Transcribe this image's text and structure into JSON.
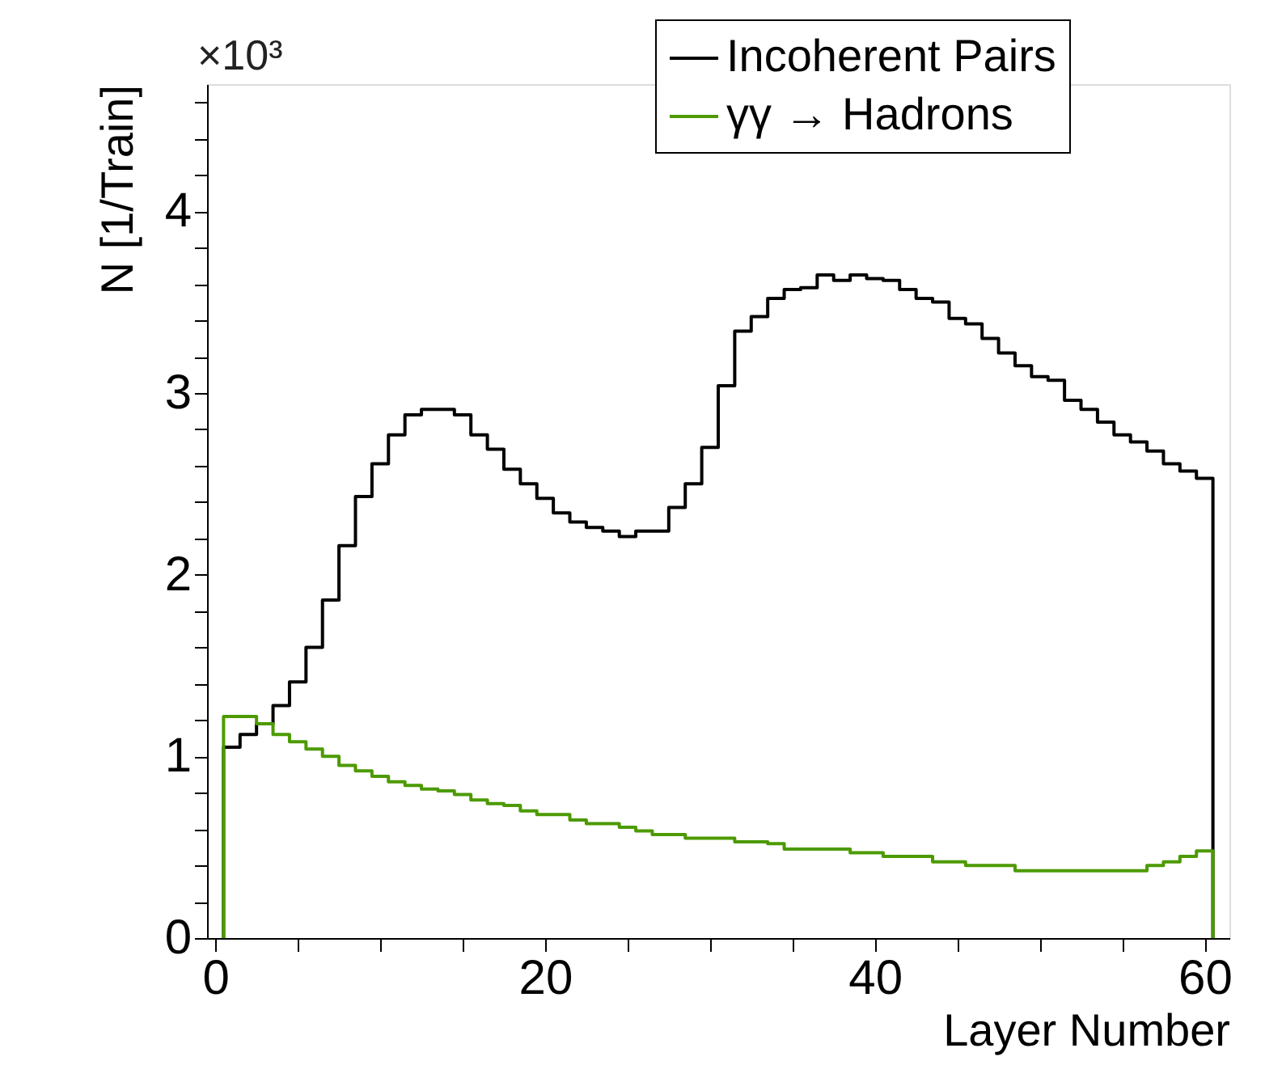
{
  "chart_data": {
    "type": "histogram",
    "xlabel": "Layer Number",
    "ylabel": "N [1/Train]",
    "annotations": [
      "×10³"
    ],
    "bins": [
      0.5,
      1.5,
      2.5,
      3.5,
      4.5,
      5.5,
      6.5,
      7.5,
      8.5,
      9.5,
      10.5,
      11.5,
      12.5,
      13.5,
      14.5,
      15.5,
      16.5,
      17.5,
      18.5,
      19.5,
      20.5,
      21.5,
      22.5,
      23.5,
      24.5,
      25.5,
      26.5,
      27.5,
      28.5,
      29.5,
      30.5,
      31.5,
      32.5,
      33.5,
      34.5,
      35.5,
      36.5,
      37.5,
      38.5,
      39.5,
      40.5,
      41.5,
      42.5,
      43.5,
      44.5,
      45.5,
      46.5,
      47.5,
      48.5,
      49.5,
      50.5,
      51.5,
      52.5,
      53.5,
      54.5,
      55.5,
      56.5,
      57.5,
      58.5,
      59.5,
      60.5
    ],
    "series": [
      {
        "name": "Incoherent Pairs",
        "color": "#000000",
        "values": [
          1.05,
          1.12,
          1.18,
          1.28,
          1.41,
          1.6,
          1.86,
          2.16,
          2.43,
          2.61,
          2.77,
          2.88,
          2.91,
          2.91,
          2.88,
          2.77,
          2.69,
          2.58,
          2.5,
          2.42,
          2.34,
          2.29,
          2.26,
          2.24,
          2.21,
          2.24,
          2.24,
          2.37,
          2.5,
          2.7,
          3.04,
          3.34,
          3.42,
          3.52,
          3.57,
          3.58,
          3.65,
          3.62,
          3.65,
          3.63,
          3.62,
          3.57,
          3.52,
          3.5,
          3.41,
          3.38,
          3.3,
          3.22,
          3.15,
          3.09,
          3.07,
          2.96,
          2.91,
          2.84,
          2.77,
          2.73,
          2.68,
          2.61,
          2.57,
          2.53
        ]
      },
      {
        "name": "γγ → Hadrons",
        "color": "#4c9a00",
        "values": [
          1.22,
          1.22,
          1.18,
          1.12,
          1.08,
          1.04,
          1.0,
          0.95,
          0.92,
          0.89,
          0.86,
          0.84,
          0.82,
          0.81,
          0.79,
          0.76,
          0.74,
          0.73,
          0.7,
          0.68,
          0.68,
          0.65,
          0.63,
          0.63,
          0.61,
          0.59,
          0.57,
          0.57,
          0.55,
          0.55,
          0.55,
          0.53,
          0.53,
          0.52,
          0.49,
          0.49,
          0.49,
          0.49,
          0.47,
          0.47,
          0.45,
          0.45,
          0.45,
          0.42,
          0.42,
          0.4,
          0.4,
          0.4,
          0.37,
          0.37,
          0.37,
          0.37,
          0.37,
          0.37,
          0.37,
          0.37,
          0.4,
          0.42,
          0.45,
          0.48
        ]
      }
    ],
    "xlim": [
      -0.5,
      61.5
    ],
    "xticks": [
      0,
      {
        "value": 5,
        "label": null
      },
      {
        "value": 10,
        "label": null
      },
      {
        "value": 15,
        "label": null
      },
      20,
      {
        "value": 25,
        "label": null
      },
      {
        "value": 30,
        "label": null
      },
      {
        "value": 35,
        "label": null
      },
      40,
      {
        "value": 45,
        "label": null
      },
      {
        "value": 50,
        "label": null
      },
      {
        "value": 55,
        "label": null
      },
      60
    ],
    "ylim": [
      0,
      4.7
    ],
    "yticks": [
      0,
      {
        "value": 0.2,
        "label": null
      },
      {
        "value": 0.4,
        "label": null
      },
      {
        "value": 0.6,
        "label": null
      },
      {
        "value": 0.8,
        "label": null
      },
      1,
      {
        "value": 1.2,
        "label": null
      },
      {
        "value": 1.4,
        "label": null
      },
      {
        "value": 1.6,
        "label": null
      },
      {
        "value": 1.8,
        "label": null
      },
      2,
      {
        "value": 2.2,
        "label": null
      },
      {
        "value": 2.4,
        "label": null
      },
      {
        "value": 2.6,
        "label": null
      },
      {
        "value": 2.8,
        "label": null
      },
      3,
      {
        "value": 3.2,
        "label": null
      },
      {
        "value": 3.4,
        "label": null
      },
      {
        "value": 3.6,
        "label": null
      },
      {
        "value": 3.8,
        "label": null
      },
      4,
      {
        "value": 4.2,
        "label": null
      },
      {
        "value": 4.4,
        "label": null
      },
      {
        "value": 4.6,
        "label": null
      }
    ],
    "grid": false,
    "legend": "top right"
  }
}
